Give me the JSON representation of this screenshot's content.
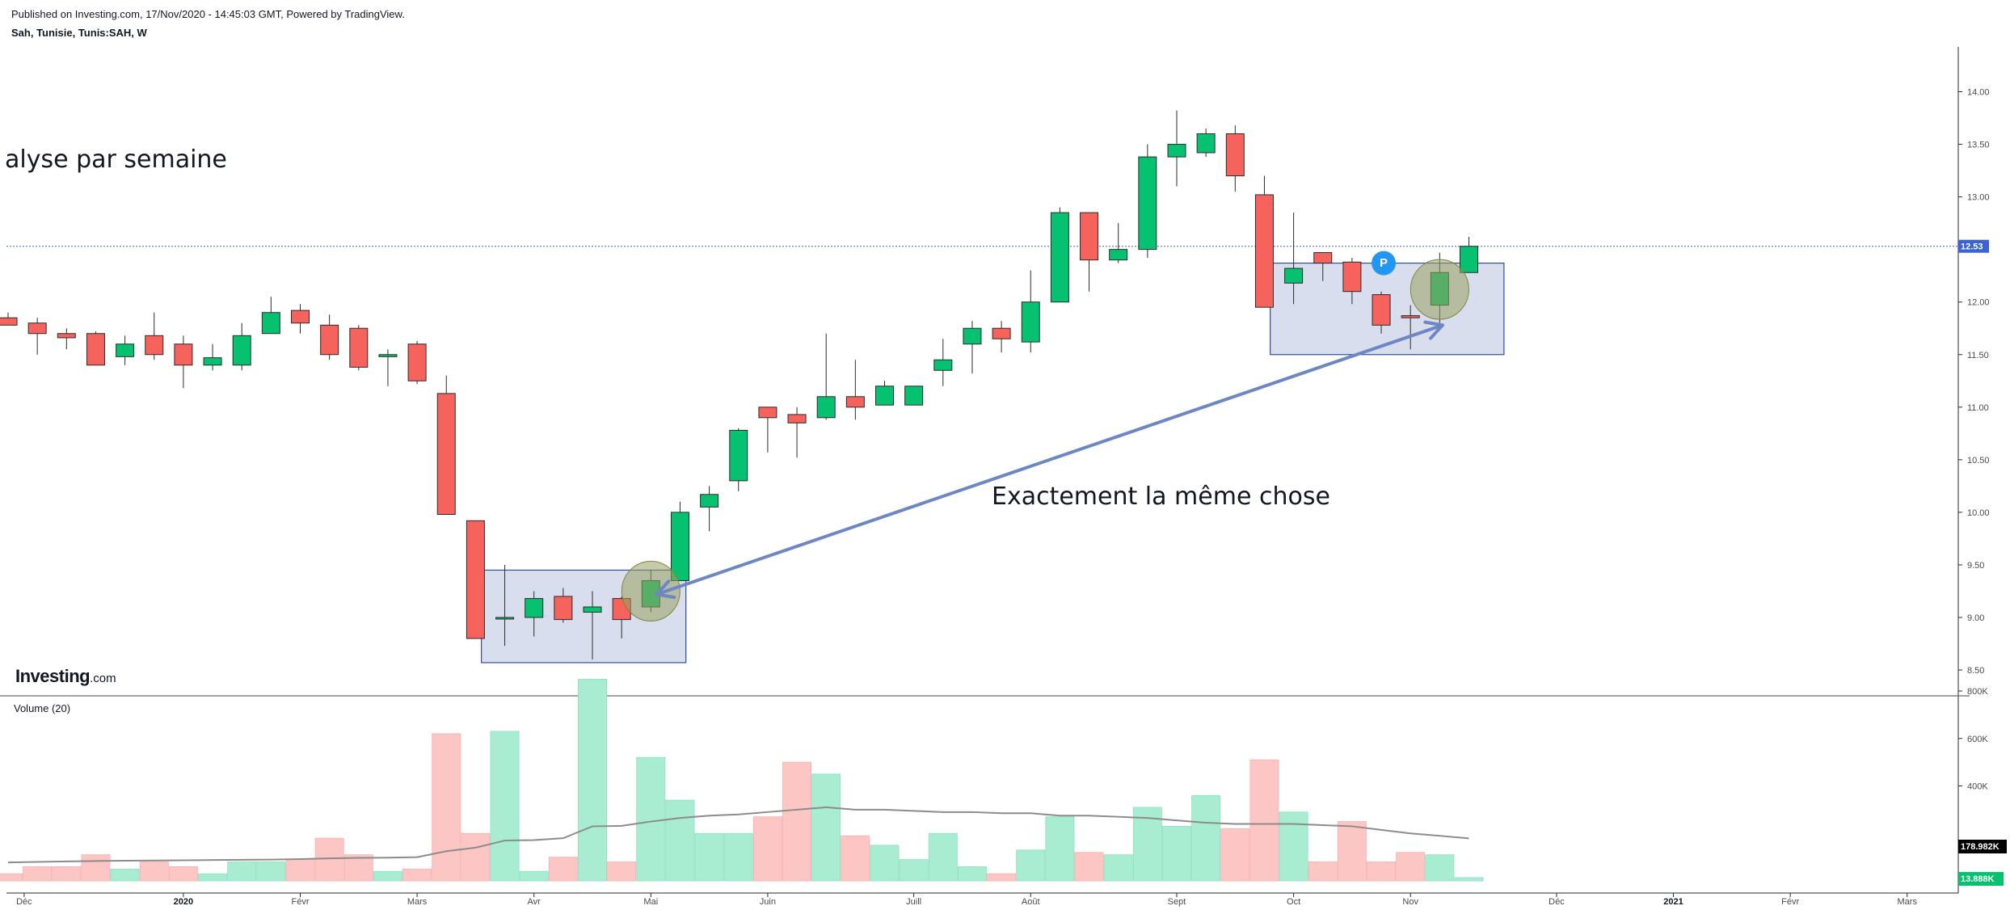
{
  "header": {
    "publish_line": "Published on Investing.com, 17/Nov/2020 - 14:45:03 GMT, Powered by TradingView.",
    "symbol_line": "Sah, Tunisie, Tunis:SAH, W"
  },
  "annotations": {
    "title_fragment": "alyse par semaine",
    "comparison_note": "Exactement la même chose",
    "marker_badge": "P"
  },
  "logo": {
    "main": "Investing",
    "suffix": ".com"
  },
  "volume_panel": {
    "label": "Volume (20)"
  },
  "price_tags": {
    "last_price": "12.53",
    "volume_ma": "178.982K",
    "volume_last": "13.888K"
  },
  "colors": {
    "up": "#06c270",
    "down": "#f6625c",
    "up_volume": "#a8ecd2",
    "down_volume": "#fcc6c4",
    "box_fill": "#d6dcec",
    "box_stroke": "#2e4fa0",
    "arrow": "#6d86c4",
    "highlight": "#9aa060",
    "last_price_line": "#3b63d6",
    "badge": "#2196f3",
    "vol_ma_line": "#8c8c8c"
  },
  "chart_data": {
    "type": "candlestick",
    "interval": "weekly",
    "price_axis": {
      "ticks": [
        "8.50",
        "9.00",
        "9.50",
        "10.00",
        "10.50",
        "11.00",
        "11.50",
        "12.00",
        "12.50",
        "13.00",
        "13.50",
        "14.00"
      ],
      "range": [
        8.3,
        14.4
      ]
    },
    "volume_axis": {
      "ticks": [
        "400K",
        "600K",
        "800K"
      ],
      "range": [
        0,
        900000
      ]
    },
    "time_axis": {
      "labels": [
        "Déc",
        "2020",
        "Févr",
        "Mars",
        "Avr",
        "Mai",
        "Juin",
        "Juill",
        "Août",
        "Sept",
        "Oct",
        "Nov",
        "Déc",
        "2021",
        "Févr",
        "Mars"
      ],
      "bold": [
        "2020",
        "2021"
      ]
    },
    "last_price": 12.53,
    "candles": [
      {
        "o": 11.85,
        "h": 11.9,
        "l": 11.8,
        "c": 11.78
      },
      {
        "o": 11.8,
        "h": 11.85,
        "l": 11.5,
        "c": 11.7
      },
      {
        "o": 11.7,
        "h": 11.75,
        "l": 11.55,
        "c": 11.66
      },
      {
        "o": 11.7,
        "h": 11.72,
        "l": 11.4,
        "c": 11.4
      },
      {
        "o": 11.48,
        "h": 11.68,
        "l": 11.4,
        "c": 11.6
      },
      {
        "o": 11.68,
        "h": 11.9,
        "l": 11.45,
        "c": 11.5
      },
      {
        "o": 11.6,
        "h": 11.68,
        "l": 11.18,
        "c": 11.4
      },
      {
        "o": 11.4,
        "h": 11.6,
        "l": 11.35,
        "c": 11.47
      },
      {
        "o": 11.4,
        "h": 11.8,
        "l": 11.35,
        "c": 11.68
      },
      {
        "o": 11.7,
        "h": 12.05,
        "l": 11.7,
        "c": 11.9
      },
      {
        "o": 11.92,
        "h": 11.98,
        "l": 11.7,
        "c": 11.8
      },
      {
        "o": 11.78,
        "h": 11.88,
        "l": 11.45,
        "c": 11.5
      },
      {
        "o": 11.75,
        "h": 11.78,
        "l": 11.35,
        "c": 11.38
      },
      {
        "o": 11.48,
        "h": 11.55,
        "l": 11.2,
        "c": 11.5
      },
      {
        "o": 11.6,
        "h": 11.63,
        "l": 11.22,
        "c": 11.25
      },
      {
        "o": 11.13,
        "h": 11.3,
        "l": 9.98,
        "c": 9.98
      },
      {
        "o": 9.92,
        "h": 9.92,
        "l": 8.8,
        "c": 8.8
      },
      {
        "o": 9.0,
        "h": 9.5,
        "l": 8.73,
        "c": 9.0
      },
      {
        "o": 9.0,
        "h": 9.25,
        "l": 8.82,
        "c": 9.18
      },
      {
        "o": 9.2,
        "h": 9.28,
        "l": 8.95,
        "c": 8.98
      },
      {
        "o": 9.05,
        "h": 9.25,
        "l": 8.6,
        "c": 9.1
      },
      {
        "o": 9.18,
        "h": 9.2,
        "l": 8.8,
        "c": 8.98
      },
      {
        "o": 9.1,
        "h": 9.45,
        "l": 9.05,
        "c": 9.35
      },
      {
        "o": 9.35,
        "h": 10.1,
        "l": 9.35,
        "c": 10.0
      },
      {
        "o": 10.05,
        "h": 10.25,
        "l": 9.82,
        "c": 10.17
      },
      {
        "o": 10.3,
        "h": 10.8,
        "l": 10.2,
        "c": 10.78
      },
      {
        "o": 11.0,
        "h": 11.0,
        "l": 10.57,
        "c": 10.9
      },
      {
        "o": 10.93,
        "h": 11.0,
        "l": 10.52,
        "c": 10.85
      },
      {
        "o": 10.9,
        "h": 11.7,
        "l": 10.88,
        "c": 11.1
      },
      {
        "o": 11.1,
        "h": 11.45,
        "l": 10.88,
        "c": 11.0
      },
      {
        "o": 11.02,
        "h": 11.25,
        "l": 11.02,
        "c": 11.2
      },
      {
        "o": 11.02,
        "h": 11.18,
        "l": 11.02,
        "c": 11.2
      },
      {
        "o": 11.35,
        "h": 11.65,
        "l": 11.2,
        "c": 11.45
      },
      {
        "o": 11.6,
        "h": 11.82,
        "l": 11.32,
        "c": 11.75
      },
      {
        "o": 11.75,
        "h": 11.82,
        "l": 11.52,
        "c": 11.65
      },
      {
        "o": 11.62,
        "h": 12.3,
        "l": 11.52,
        "c": 12.0
      },
      {
        "o": 12.0,
        "h": 12.9,
        "l": 12.0,
        "c": 12.85
      },
      {
        "o": 12.85,
        "h": 12.85,
        "l": 12.1,
        "c": 12.4
      },
      {
        "o": 12.4,
        "h": 12.75,
        "l": 12.37,
        "c": 12.5
      },
      {
        "o": 12.5,
        "h": 13.5,
        "l": 12.42,
        "c": 13.38
      },
      {
        "o": 13.38,
        "h": 13.82,
        "l": 13.1,
        "c": 13.5
      },
      {
        "o": 13.42,
        "h": 13.65,
        "l": 13.38,
        "c": 13.6
      },
      {
        "o": 13.6,
        "h": 13.68,
        "l": 13.05,
        "c": 13.2
      },
      {
        "o": 13.02,
        "h": 13.2,
        "l": 11.95,
        "c": 11.95
      },
      {
        "o": 12.18,
        "h": 12.85,
        "l": 11.98,
        "c": 12.32
      },
      {
        "o": 12.47,
        "h": 12.47,
        "l": 12.2,
        "c": 12.37
      },
      {
        "o": 12.38,
        "h": 12.42,
        "l": 11.98,
        "c": 12.1
      },
      {
        "o": 12.07,
        "h": 12.1,
        "l": 11.7,
        "c": 11.78
      },
      {
        "o": 11.87,
        "h": 11.97,
        "l": 11.55,
        "c": 11.85
      },
      {
        "o": 11.97,
        "h": 12.47,
        "l": 11.8,
        "c": 12.28
      },
      {
        "o": 12.28,
        "h": 12.62,
        "l": 12.28,
        "c": 12.53
      }
    ],
    "volume": [
      30000,
      60000,
      60000,
      110000,
      50000,
      80000,
      60000,
      30000,
      80000,
      80000,
      90000,
      180000,
      110000,
      40000,
      50000,
      620000,
      200000,
      630000,
      40000,
      100000,
      850000,
      80000,
      520000,
      340000,
      200000,
      200000,
      270000,
      500000,
      450000,
      190000,
      150000,
      90000,
      200000,
      60000,
      30000,
      130000,
      270000,
      120000,
      110000,
      310000,
      230000,
      360000,
      220000,
      510000,
      290000,
      80000,
      250000,
      80000,
      120000,
      110000,
      13888
    ],
    "volume_ma": [
      78000,
      80000,
      82000,
      84000,
      85000,
      86000,
      87000,
      88000,
      89000,
      90000,
      92000,
      95000,
      97000,
      98000,
      100000,
      125000,
      140000,
      170000,
      172000,
      180000,
      230000,
      232000,
      250000,
      265000,
      275000,
      280000,
      290000,
      300000,
      310000,
      300000,
      300000,
      295000,
      290000,
      290000,
      285000,
      285000,
      275000,
      275000,
      270000,
      265000,
      255000,
      245000,
      240000,
      240000,
      240000,
      235000,
      230000,
      215000,
      200000,
      190000,
      178982
    ],
    "zones": [
      {
        "name": "zone-avril",
        "from_index": 16.2,
        "to_index": 23.2,
        "low": 8.57,
        "high": 9.45
      },
      {
        "name": "zone-octobre",
        "from_index": 43.2,
        "to_index": 51.2,
        "low": 11.5,
        "high": 12.37
      }
    ],
    "highlights": [
      {
        "index": 22,
        "price": 9.25
      },
      {
        "index": 49,
        "price": 12.12
      }
    ],
    "arrow": {
      "from_index": 22.2,
      "from_price": 9.22,
      "to_index": 49.1,
      "to_price": 11.78
    },
    "badge": {
      "index": 47,
      "price": 12.37
    }
  }
}
